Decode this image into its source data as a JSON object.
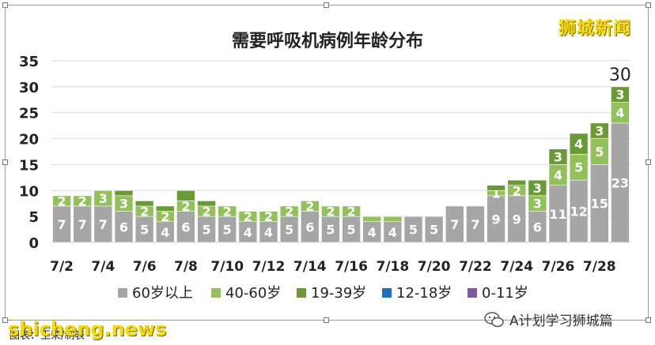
{
  "watermark_top": "狮城新闻",
  "watermark_bottom": "shicheng.news",
  "source_label": "图表：王荣/制表",
  "wechat_label": "A计划学习狮城篇",
  "colors": {
    "s60": "#a6a6a6",
    "s40": "#92c05a",
    "s19": "#6a9a35",
    "s12": "#1f6fc5",
    "s0": "#7a5aa0"
  },
  "chart_data": {
    "type": "bar",
    "stacked": true,
    "title": "需要呼吸机病例年龄分布",
    "categories": [
      "7/2",
      "7/3",
      "7/4",
      "7/5",
      "7/6",
      "7/7",
      "7/8",
      "7/9",
      "7/10",
      "7/11",
      "7/12",
      "7/13",
      "7/14",
      "7/15",
      "7/16",
      "7/17",
      "7/18",
      "7/19",
      "7/20",
      "7/21",
      "7/22",
      "7/23",
      "7/24",
      "7/25",
      "7/26",
      "7/27",
      "7/28",
      "7/29"
    ],
    "x_tick_labels": [
      "7/2",
      "7/4",
      "7/6",
      "7/8",
      "7/10",
      "7/12",
      "7/14",
      "7/16",
      "7/18",
      "7/20",
      "7/22",
      "7/24",
      "7/26",
      "7/28"
    ],
    "series": [
      {
        "name": "60岁以上",
        "color_key": "s60",
        "values": [
          7,
          7,
          7,
          6,
          5,
          4,
          6,
          5,
          5,
          4,
          4,
          5,
          6,
          5,
          5,
          4,
          4,
          5,
          5,
          7,
          7,
          9,
          9,
          6,
          11,
          12,
          15,
          23
        ]
      },
      {
        "name": "40-60岁",
        "color_key": "s40",
        "values": [
          2,
          2,
          3,
          3,
          2,
          2,
          2,
          2,
          2,
          2,
          2,
          2,
          2,
          2,
          2,
          1,
          1,
          0,
          0,
          0,
          0,
          1,
          2,
          3,
          4,
          5,
          5,
          4
        ]
      },
      {
        "name": "19-39岁",
        "color_key": "s19",
        "values": [
          0,
          0,
          0,
          1,
          1,
          1,
          2,
          1,
          0,
          0,
          0,
          0,
          0,
          0,
          0,
          0,
          0,
          0,
          0,
          0,
          0,
          1,
          1,
          3,
          3,
          4,
          3,
          3
        ]
      },
      {
        "name": "12-18岁",
        "color_key": "s12",
        "values": [
          0,
          0,
          0,
          0,
          0,
          0,
          0,
          0,
          0,
          0,
          0,
          0,
          0,
          0,
          0,
          0,
          0,
          0,
          0,
          0,
          0,
          0,
          0,
          0,
          0,
          0,
          0,
          0
        ]
      },
      {
        "name": "0-11岁",
        "color_key": "s0",
        "values": [
          0,
          0,
          0,
          0,
          0,
          0,
          0,
          0,
          0,
          0,
          0,
          0,
          0,
          0,
          0,
          0,
          0,
          0,
          0,
          0,
          0,
          0,
          0,
          0,
          0,
          0,
          0,
          0
        ]
      }
    ],
    "data_labels": [
      [
        "7",
        "2",
        ""
      ],
      [
        "7",
        "2",
        ""
      ],
      [
        "7",
        "3",
        ""
      ],
      [
        "6",
        "3",
        ""
      ],
      [
        "5",
        "2",
        ""
      ],
      [
        "4",
        "2",
        ""
      ],
      [
        "6",
        "2",
        ""
      ],
      [
        "5",
        "2",
        ""
      ],
      [
        "5",
        "2",
        ""
      ],
      [
        "4",
        "2",
        ""
      ],
      [
        "4",
        "2",
        ""
      ],
      [
        "5",
        "2",
        ""
      ],
      [
        "6",
        "2",
        ""
      ],
      [
        "5",
        "2",
        ""
      ],
      [
        "5",
        "2",
        ""
      ],
      [
        "4",
        "",
        ""
      ],
      [
        "4",
        "",
        ""
      ],
      [
        "5",
        "",
        ""
      ],
      [
        "5",
        "",
        ""
      ],
      [
        "7",
        "",
        ""
      ],
      [
        "7",
        "",
        ""
      ],
      [
        "9",
        "1",
        ""
      ],
      [
        "9",
        "2",
        ""
      ],
      [
        "6",
        "3",
        "3"
      ],
      [
        "11",
        "4",
        "3"
      ],
      [
        "12",
        "5",
        "4"
      ],
      [
        "15",
        "5",
        "3"
      ],
      [
        "23",
        "4",
        "3"
      ]
    ],
    "total_label": {
      "index": 27,
      "text": "30"
    },
    "ylim": [
      0,
      35
    ],
    "yticks": [
      0,
      5,
      10,
      15,
      20,
      25,
      30,
      35
    ],
    "grid": true,
    "legend_position": "bottom"
  }
}
